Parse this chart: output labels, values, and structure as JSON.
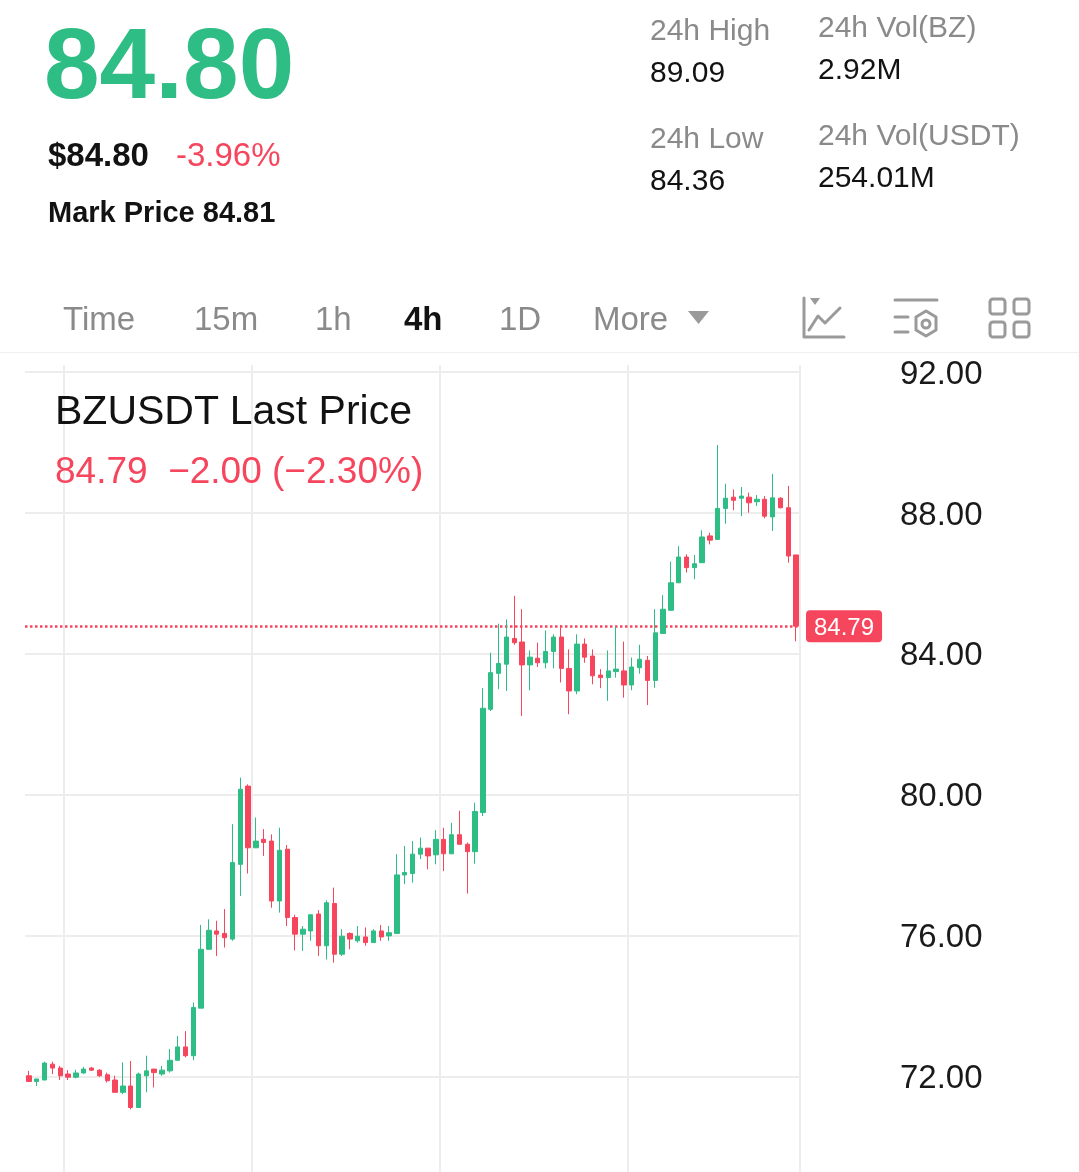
{
  "chart_data": {
    "type": "candlestick",
    "title": "BZUSDT Last Price",
    "subtitle": "84.79  −2.00 (−2.30%)",
    "annotations": [
      "84.80",
      "$84.80",
      "-3.96%",
      "Mark Price 84.81",
      "24h High",
      "89.09",
      "24h Vol(BZ)",
      "2.92M",
      "24h Low",
      "84.36",
      "24h Vol(USDT)",
      "254.01M",
      "Time",
      "15m",
      "1h",
      "4h",
      "1D",
      "More"
    ],
    "categories": [
      null,
      null,
      null,
      null,
      null,
      null,
      null,
      null,
      null,
      null,
      null,
      null,
      null,
      null,
      null,
      null,
      null,
      null,
      null,
      null,
      null,
      null,
      null,
      null,
      null,
      null,
      null,
      null,
      null,
      null,
      null,
      null,
      null,
      null,
      null,
      null,
      null,
      null,
      null,
      null,
      null,
      null,
      null,
      null,
      null,
      null,
      null,
      null,
      null,
      null,
      null,
      null,
      null,
      null,
      null,
      null,
      null,
      null,
      null,
      null,
      null,
      null,
      null,
      null,
      null,
      null,
      null,
      null,
      null,
      null,
      null,
      null,
      null,
      null,
      null,
      null,
      null,
      null,
      null,
      null,
      null,
      null,
      null,
      null,
      null,
      null,
      null,
      null,
      null,
      null,
      null,
      null,
      null,
      null,
      null,
      null,
      null,
      null,
      null
    ],
    "ohlc": [
      [
        72.03,
        72.17,
        71.86,
        71.87
      ],
      [
        71.87,
        71.94,
        71.74,
        71.94
      ],
      [
        71.91,
        72.43,
        71.91,
        72.39
      ],
      [
        72.36,
        72.43,
        72.08,
        72.25
      ],
      [
        72.25,
        72.31,
        71.91,
        72.03
      ],
      [
        72.08,
        72.19,
        71.91,
        71.99
      ],
      [
        71.99,
        72.2,
        71.96,
        72.11
      ],
      [
        72.11,
        72.28,
        72.09,
        72.22
      ],
      [
        72.25,
        72.28,
        72.17,
        72.19
      ],
      [
        72.19,
        72.22,
        72.0,
        72.03
      ],
      [
        72.06,
        72.12,
        71.84,
        71.89
      ],
      [
        71.91,
        72.03,
        71.56,
        71.56
      ],
      [
        71.56,
        72.41,
        71.51,
        71.74
      ],
      [
        71.74,
        72.45,
        71.08,
        71.13
      ],
      [
        71.13,
        72.12,
        71.13,
        72.08
      ],
      [
        72.03,
        72.6,
        71.56,
        72.17
      ],
      [
        72.22,
        72.22,
        71.7,
        72.12
      ],
      [
        72.08,
        72.31,
        72.03,
        72.19
      ],
      [
        72.17,
        72.79,
        72.12,
        72.47
      ],
      [
        72.47,
        73.16,
        72.47,
        72.85
      ],
      [
        72.85,
        73.3,
        72.55,
        72.6
      ],
      [
        72.6,
        74.11,
        72.47,
        73.97
      ],
      [
        73.95,
        76.31,
        73.95,
        75.62
      ],
      [
        75.62,
        76.47,
        75.62,
        76.16
      ],
      [
        76.14,
        76.43,
        75.43,
        76.05
      ],
      [
        76.07,
        76.76,
        75.67,
        75.95
      ],
      [
        75.91,
        79.17,
        75.86,
        78.08
      ],
      [
        78.03,
        80.49,
        77.13,
        80.16
      ],
      [
        80.25,
        80.3,
        77.77,
        78.5
      ],
      [
        78.5,
        79.36,
        78.5,
        78.69
      ],
      [
        78.74,
        79.03,
        78.27,
        78.65
      ],
      [
        78.69,
        78.88,
        76.8,
        76.99
      ],
      [
        76.99,
        79.07,
        76.66,
        78.43
      ],
      [
        78.46,
        78.58,
        76.28,
        76.52
      ],
      [
        76.52,
        76.6,
        75.59,
        76.05
      ],
      [
        76.05,
        76.28,
        75.57,
        76.19
      ],
      [
        76.14,
        76.6,
        75.86,
        76.6
      ],
      [
        76.62,
        76.73,
        75.43,
        75.72
      ],
      [
        75.72,
        77.01,
        75.33,
        76.94
      ],
      [
        76.92,
        77.37,
        75.24,
        75.48
      ],
      [
        75.48,
        76.19,
        75.43,
        75.99
      ],
      [
        76.07,
        76.1,
        75.62,
        75.91
      ],
      [
        75.86,
        76.28,
        75.81,
        75.99
      ],
      [
        75.97,
        76.24,
        75.72,
        75.81
      ],
      [
        75.81,
        76.19,
        75.81,
        76.14
      ],
      [
        76.14,
        76.31,
        75.86,
        75.97
      ],
      [
        76.0,
        76.28,
        75.86,
        76.09
      ],
      [
        76.07,
        78.32,
        76.07,
        77.73
      ],
      [
        77.73,
        78.55,
        77.47,
        77.8
      ],
      [
        77.77,
        78.69,
        77.51,
        78.32
      ],
      [
        78.32,
        78.79,
        78.18,
        78.49
      ],
      [
        78.49,
        78.49,
        77.89,
        78.27
      ],
      [
        78.3,
        79.0,
        78.03,
        78.74
      ],
      [
        78.74,
        79.07,
        77.84,
        78.33
      ],
      [
        78.33,
        79.21,
        78.32,
        78.87
      ],
      [
        78.87,
        79.55,
        78.6,
        78.6
      ],
      [
        78.6,
        78.65,
        77.2,
        78.39
      ],
      [
        78.39,
        79.78,
        78.05,
        79.53
      ],
      [
        79.5,
        83.03,
        79.4,
        82.46
      ],
      [
        82.43,
        84.04,
        82.38,
        83.47
      ],
      [
        83.45,
        84.86,
        83.0,
        83.73
      ],
      [
        83.71,
        84.98,
        82.95,
        84.48
      ],
      [
        84.44,
        85.65,
        84.26,
        84.32
      ],
      [
        84.34,
        85.27,
        82.24,
        83.69
      ],
      [
        83.69,
        84.1,
        82.97,
        83.91
      ],
      [
        83.88,
        84.32,
        83.63,
        83.75
      ],
      [
        83.75,
        84.67,
        83.59,
        84.07
      ],
      [
        84.07,
        84.56,
        83.59,
        84.48
      ],
      [
        84.48,
        84.82,
        83.19,
        83.59
      ],
      [
        83.59,
        84.13,
        82.29,
        82.95
      ],
      [
        82.95,
        84.56,
        82.86,
        84.28
      ],
      [
        84.28,
        84.44,
        83.75,
        83.91
      ],
      [
        83.94,
        84.13,
        83.14,
        83.38
      ],
      [
        83.4,
        83.57,
        83.03,
        83.33
      ],
      [
        83.33,
        84.1,
        82.67,
        83.52
      ],
      [
        83.5,
        84.79,
        83.33,
        83.57
      ],
      [
        83.52,
        84.35,
        82.76,
        83.12
      ],
      [
        83.12,
        83.9,
        82.97,
        83.63
      ],
      [
        83.61,
        84.26,
        83.44,
        83.85
      ],
      [
        83.82,
        83.94,
        82.55,
        83.25
      ],
      [
        83.25,
        85.27,
        83.04,
        84.6
      ],
      [
        84.58,
        85.67,
        84.58,
        85.27
      ],
      [
        85.24,
        86.62,
        85.24,
        86.02
      ],
      [
        86.02,
        87.06,
        86.02,
        86.75
      ],
      [
        86.75,
        86.83,
        86.31,
        86.45
      ],
      [
        86.45,
        86.81,
        86.12,
        86.56
      ],
      [
        86.59,
        87.51,
        86.59,
        87.32
      ],
      [
        87.35,
        87.44,
        87.11,
        87.23
      ],
      [
        87.25,
        89.93,
        87.25,
        88.13
      ],
      [
        88.13,
        88.83,
        87.7,
        88.42
      ],
      [
        88.45,
        88.67,
        88.08,
        88.36
      ],
      [
        88.42,
        88.74,
        87.91,
        88.48
      ],
      [
        88.45,
        88.58,
        88.01,
        88.29
      ],
      [
        88.32,
        88.51,
        88.2,
        88.39
      ],
      [
        88.39,
        88.48,
        87.85,
        87.91
      ],
      [
        87.89,
        89.11,
        87.49,
        88.43
      ],
      [
        88.42,
        88.45,
        88.13,
        88.15
      ],
      [
        88.15,
        88.77,
        86.59,
        86.78
      ],
      [
        86.81,
        86.81,
        84.36,
        84.79
      ]
    ],
    "ylim": [
      69.3,
      92.2
    ],
    "yticks": [
      {
        "value": 72,
        "label": "72.00"
      },
      {
        "value": 76,
        "label": "76.00"
      },
      {
        "value": 80,
        "label": "80.00"
      },
      {
        "value": 84,
        "label": "84.00"
      },
      {
        "value": 88,
        "label": "88.00"
      },
      {
        "value": 92,
        "label": "92.00"
      }
    ],
    "grid": true,
    "tick_labels": "y",
    "ref_lines": [
      {
        "axis": "y",
        "value": 84.79,
        "label": "84.79",
        "color": "#f6465d",
        "line_style": "dotted"
      }
    ]
  }
}
